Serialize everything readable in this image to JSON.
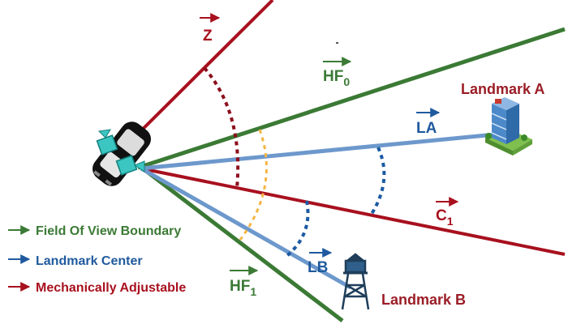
{
  "colors": {
    "red": "#a8101e",
    "green": "#3b7a35",
    "blue": "#5b8fcc",
    "label_blue": "#1f5a9e",
    "dark_red": "#8c0f1d",
    "orange": "#f5b544",
    "dotted_blue": "#1b5aa3"
  },
  "vectors": {
    "z": {
      "name": "Z"
    },
    "hf0": {
      "name": "HF",
      "sub": "0"
    },
    "hf1": {
      "name": "HF",
      "sub": "1"
    },
    "la": {
      "name": "LA"
    },
    "lb": {
      "name": "LB"
    },
    "c1": {
      "name": "C",
      "sub": "1"
    }
  },
  "landmarks": {
    "a": {
      "label": "Landmark A",
      "icon": "office-building-icon"
    },
    "b": {
      "label": "Landmark B",
      "icon": "water-tower-icon"
    }
  },
  "vehicle": {
    "icon": "car-with-cameras-icon"
  },
  "legend": [
    {
      "label": "Field Of View Boundary",
      "color": "#3b7a35"
    },
    {
      "label": "Landmark Center",
      "color": "#1f5a9e"
    },
    {
      "label": "Mechanically Adjustable",
      "color": "#a8101e"
    }
  ]
}
